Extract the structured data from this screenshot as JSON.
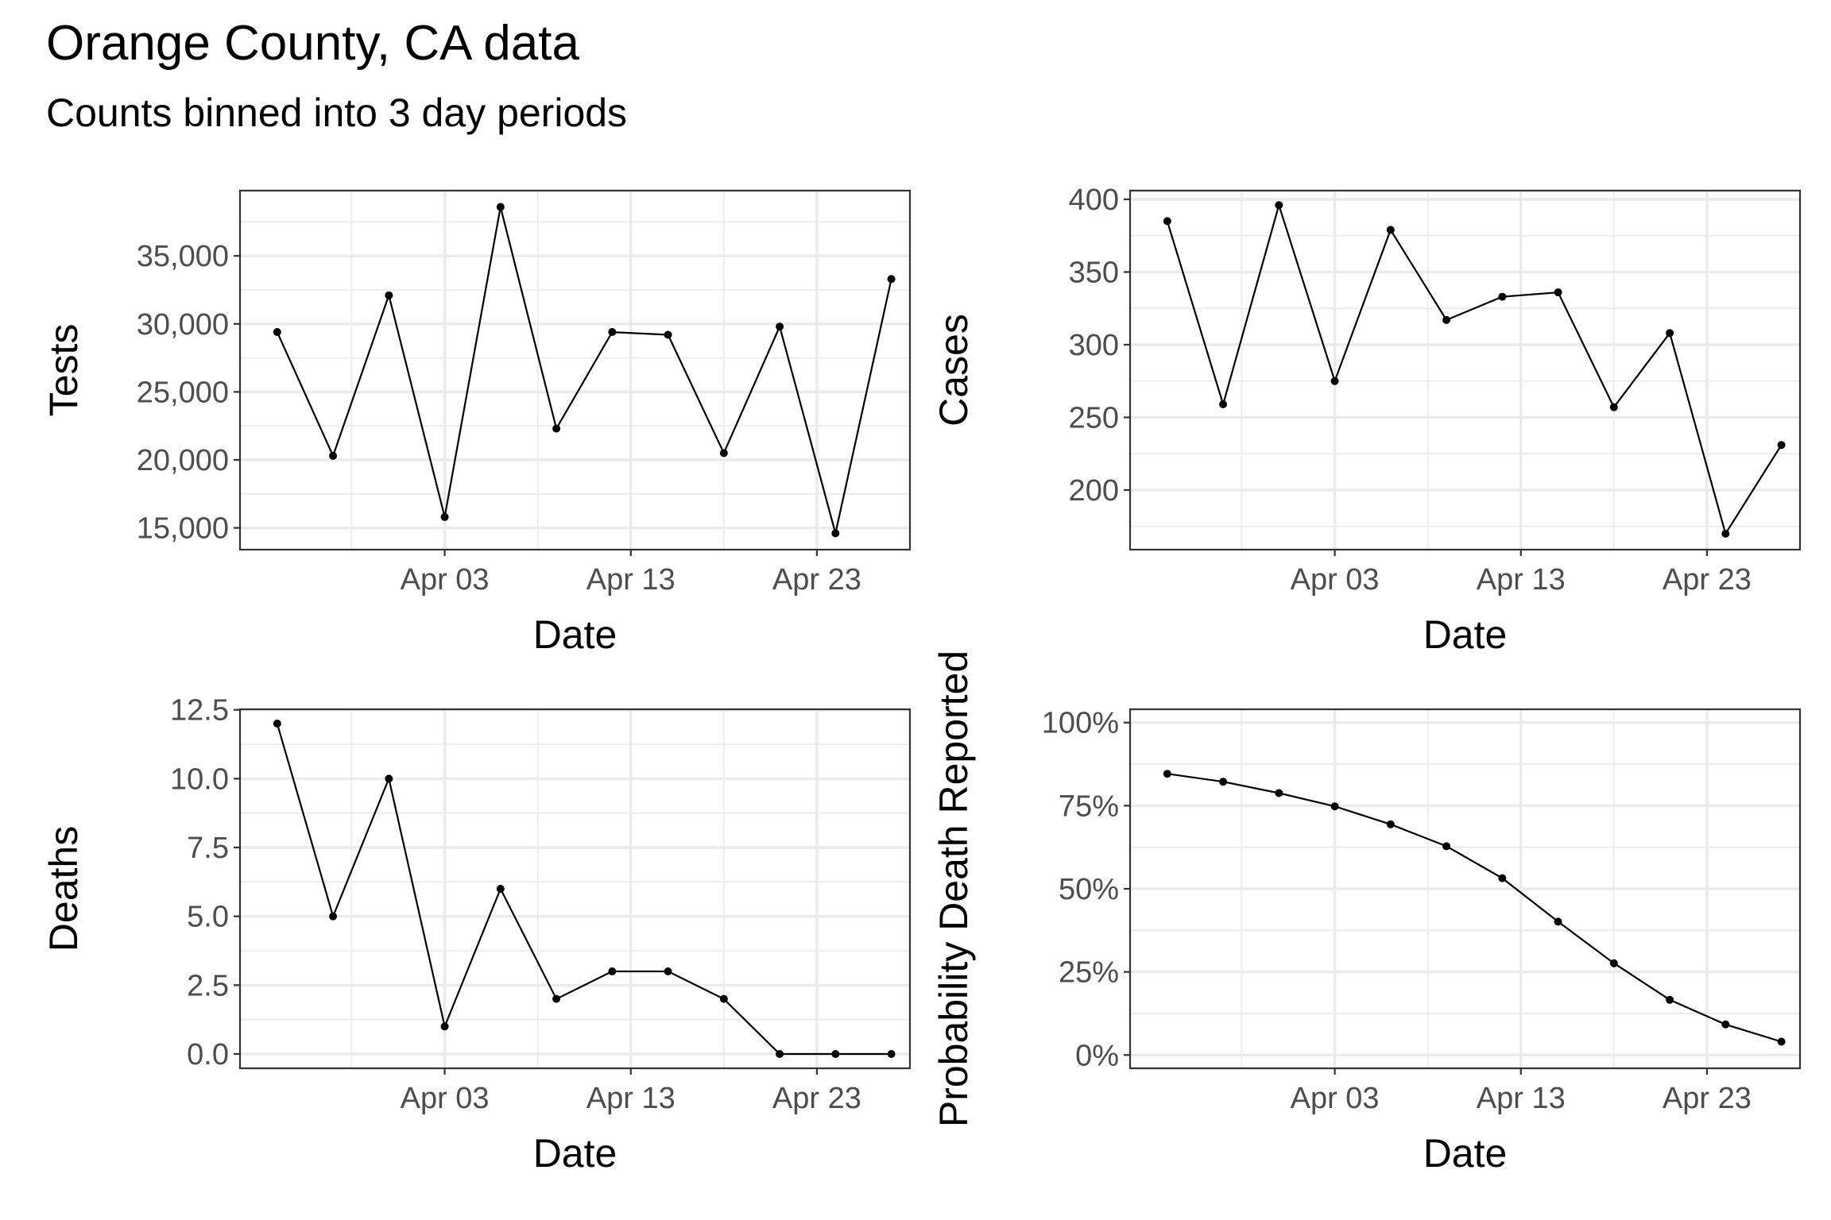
{
  "title": "Orange County, CA data",
  "subtitle": "Counts binned into 3 day periods",
  "chart_data": [
    {
      "type": "line",
      "xlabel": "Date",
      "ylabel": "Tests",
      "x": [
        "2020-03-25",
        "2020-03-28",
        "2020-03-31",
        "2020-04-03",
        "2020-04-06",
        "2020-04-09",
        "2020-04-12",
        "2020-04-15",
        "2020-04-18",
        "2020-04-21",
        "2020-04-24",
        "2020-04-27"
      ],
      "series": [
        {
          "values": [
            29400,
            20300,
            32100,
            15800,
            38600,
            22300,
            29400,
            29200,
            20500,
            29800,
            14600,
            33300
          ]
        }
      ],
      "xticks": [
        {
          "date": "2020-04-03",
          "label": "Apr 03"
        },
        {
          "date": "2020-04-13",
          "label": "Apr 13"
        },
        {
          "date": "2020-04-23",
          "label": "Apr 23"
        }
      ],
      "xminor": [
        "2020-03-29",
        "2020-04-08",
        "2020-04-18",
        "2020-04-28"
      ],
      "xlim": [
        "2020-03-23",
        "2020-04-28"
      ],
      "yticks": [
        {
          "v": 15000,
          "label": "15,000"
        },
        {
          "v": 20000,
          "label": "20,000"
        },
        {
          "v": 25000,
          "label": "25,000"
        },
        {
          "v": 30000,
          "label": "30,000"
        },
        {
          "v": 35000,
          "label": "35,000"
        }
      ],
      "yminor": [
        17500,
        22500,
        27500,
        32500,
        37500
      ],
      "ylim": [
        13400,
        39800
      ],
      "grid": true
    },
    {
      "type": "line",
      "xlabel": "Date",
      "ylabel": "Cases",
      "x": [
        "2020-03-25",
        "2020-03-28",
        "2020-03-31",
        "2020-04-03",
        "2020-04-06",
        "2020-04-09",
        "2020-04-12",
        "2020-04-15",
        "2020-04-18",
        "2020-04-21",
        "2020-04-24",
        "2020-04-27"
      ],
      "series": [
        {
          "values": [
            385,
            259,
            396,
            275,
            379,
            317,
            333,
            336,
            257,
            308,
            170,
            231
          ]
        }
      ],
      "xticks": [
        {
          "date": "2020-04-03",
          "label": "Apr 03"
        },
        {
          "date": "2020-04-13",
          "label": "Apr 13"
        },
        {
          "date": "2020-04-23",
          "label": "Apr 23"
        }
      ],
      "xminor": [
        "2020-03-29",
        "2020-04-08",
        "2020-04-18",
        "2020-04-28"
      ],
      "xlim": [
        "2020-03-23",
        "2020-04-28"
      ],
      "yticks": [
        {
          "v": 200,
          "label": "200"
        },
        {
          "v": 250,
          "label": "250"
        },
        {
          "v": 300,
          "label": "300"
        },
        {
          "v": 350,
          "label": "350"
        },
        {
          "v": 400,
          "label": "400"
        }
      ],
      "yminor": [
        175,
        225,
        275,
        325,
        375
      ],
      "ylim": [
        159,
        406
      ],
      "grid": true
    },
    {
      "type": "line",
      "xlabel": "Date",
      "ylabel": "Deaths",
      "x": [
        "2020-03-25",
        "2020-03-28",
        "2020-03-31",
        "2020-04-03",
        "2020-04-06",
        "2020-04-09",
        "2020-04-12",
        "2020-04-15",
        "2020-04-18",
        "2020-04-21",
        "2020-04-24",
        "2020-04-27"
      ],
      "series": [
        {
          "values": [
            12,
            5,
            10,
            1,
            6,
            2,
            3,
            3,
            2,
            0,
            0,
            0
          ]
        }
      ],
      "xticks": [
        {
          "date": "2020-04-03",
          "label": "Apr 03"
        },
        {
          "date": "2020-04-13",
          "label": "Apr 13"
        },
        {
          "date": "2020-04-23",
          "label": "Apr 23"
        }
      ],
      "xminor": [
        "2020-03-29",
        "2020-04-08",
        "2020-04-18",
        "2020-04-28"
      ],
      "xlim": [
        "2020-03-23",
        "2020-04-28"
      ],
      "yticks": [
        {
          "v": 0,
          "label": "0.0"
        },
        {
          "v": 2.5,
          "label": "2.5"
        },
        {
          "v": 5,
          "label": "5.0"
        },
        {
          "v": 7.5,
          "label": "7.5"
        },
        {
          "v": 10,
          "label": "10.0"
        },
        {
          "v": 12.5,
          "label": "12.5"
        }
      ],
      "yminor": [
        1.25,
        3.75,
        6.25,
        8.75,
        11.25
      ],
      "ylim": [
        -0.52,
        12.52
      ],
      "grid": true
    },
    {
      "type": "line",
      "xlabel": "Date",
      "ylabel": "Probability Death Reported",
      "x": [
        "2020-03-25",
        "2020-03-28",
        "2020-03-31",
        "2020-04-03",
        "2020-04-06",
        "2020-04-09",
        "2020-04-12",
        "2020-04-15",
        "2020-04-18",
        "2020-04-21",
        "2020-04-24",
        "2020-04-27"
      ],
      "series": [
        {
          "values": [
            0.846,
            0.822,
            0.788,
            0.748,
            0.694,
            0.628,
            0.532,
            0.401,
            0.276,
            0.166,
            0.092,
            0.04
          ]
        }
      ],
      "xticks": [
        {
          "date": "2020-04-03",
          "label": "Apr 03"
        },
        {
          "date": "2020-04-13",
          "label": "Apr 13"
        },
        {
          "date": "2020-04-23",
          "label": "Apr 23"
        }
      ],
      "xminor": [
        "2020-03-29",
        "2020-04-08",
        "2020-04-18",
        "2020-04-28"
      ],
      "xlim": [
        "2020-03-23",
        "2020-04-28"
      ],
      "yticks": [
        {
          "v": 0,
          "label": "0%"
        },
        {
          "v": 0.25,
          "label": "25%"
        },
        {
          "v": 0.5,
          "label": "50%"
        },
        {
          "v": 0.75,
          "label": "75%"
        },
        {
          "v": 1,
          "label": "100%"
        }
      ],
      "yminor": [
        0.125,
        0.375,
        0.625,
        0.875
      ],
      "ylim": [
        -0.04,
        1.04
      ],
      "grid": true
    }
  ]
}
